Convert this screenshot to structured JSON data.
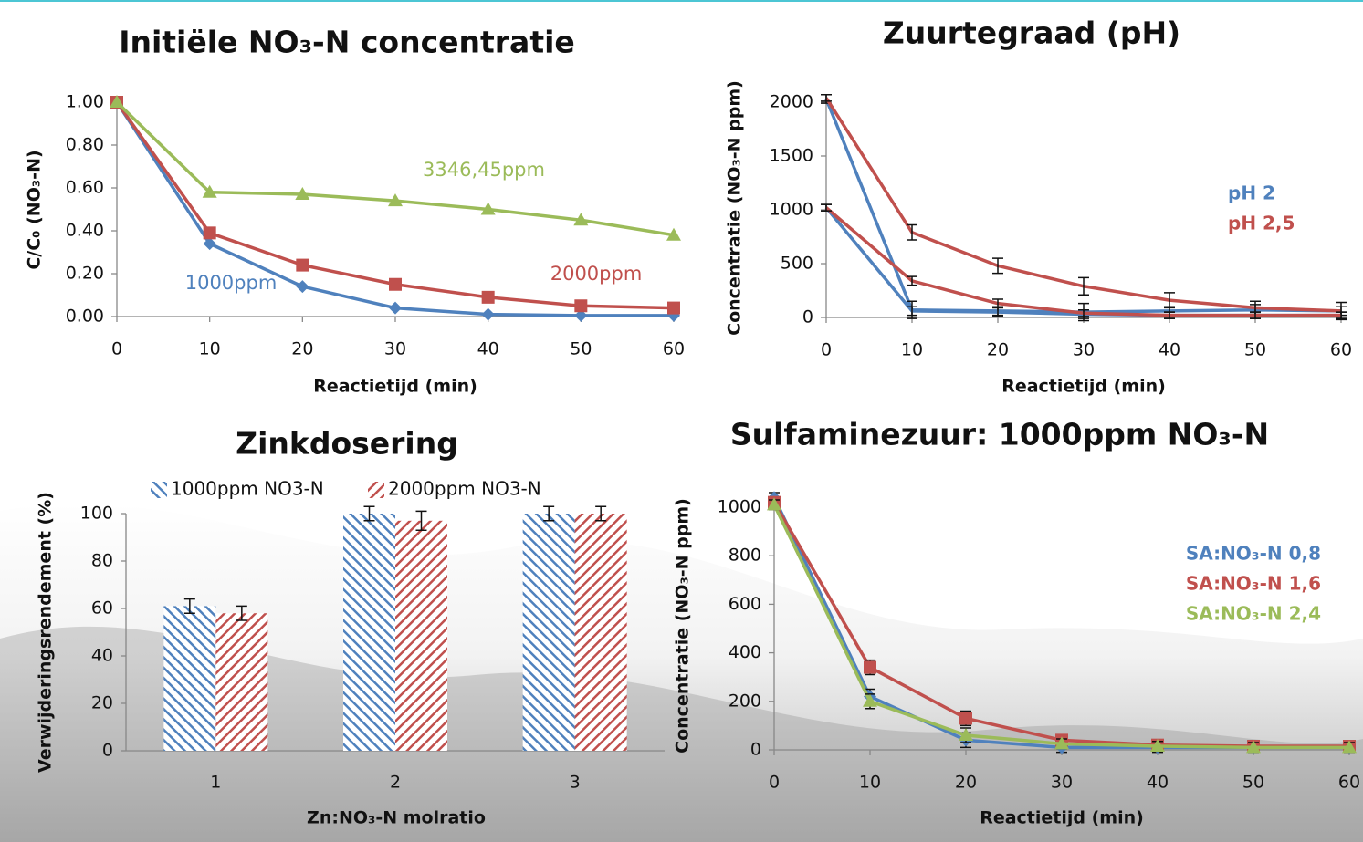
{
  "chart_data": [
    {
      "type": "line",
      "title": "Initiële NO₃-N concentratie",
      "xlabel": "Reactietijd (min)",
      "ylabel": "C/C₀ (NO₃-N)",
      "x": [
        0,
        10,
        20,
        30,
        40,
        50,
        60
      ],
      "xlim": [
        0,
        60
      ],
      "xticks": [
        0,
        10,
        20,
        30,
        40,
        50,
        60
      ],
      "ylim": [
        0,
        1
      ],
      "yticks": [
        {
          "value": 0,
          "label": "0.00"
        },
        {
          "value": 0.2,
          "label": "0.20"
        },
        {
          "value": 0.4,
          "label": "0.40"
        },
        {
          "value": 0.6,
          "label": "0.60"
        },
        {
          "value": 0.8,
          "label": "0.80"
        },
        {
          "value": 1,
          "label": "1.00"
        }
      ],
      "series": [
        {
          "name": "1000ppm",
          "color": "#4f81bd",
          "marker": "diamond",
          "values": [
            1.0,
            0.34,
            0.14,
            0.04,
            0.01,
            0.005,
            0.005
          ]
        },
        {
          "name": "2000ppm",
          "color": "#c0504d",
          "marker": "square",
          "values": [
            1.0,
            0.39,
            0.24,
            0.15,
            0.09,
            0.05,
            0.04
          ]
        },
        {
          "name": "3346,45ppm",
          "color": "#9bbb59",
          "marker": "triangle",
          "values": [
            1.0,
            0.58,
            0.57,
            0.54,
            0.5,
            0.45,
            0.38
          ]
        }
      ]
    },
    {
      "type": "line",
      "title": "Zuurtegraad (pH)",
      "xlabel": "Reactietijd (min)",
      "ylabel": "Concentratie (NO₃-N ppm)",
      "x": [
        0,
        10,
        20,
        30,
        40,
        50,
        60
      ],
      "xlim": [
        0,
        60
      ],
      "xticks": [
        0,
        10,
        20,
        30,
        40,
        50,
        60
      ],
      "ylim": [
        0,
        2000
      ],
      "yticks": [
        0,
        500,
        1000,
        1500,
        2000
      ],
      "legend": [
        {
          "label": "pH 2",
          "color": "#4f81bd"
        },
        {
          "label": "pH 2,5",
          "color": "#c0504d"
        }
      ],
      "series": [
        {
          "color": "#4f81bd",
          "values": [
            2030,
            70,
            60,
            50,
            60,
            70,
            60
          ],
          "errors": [
            40,
            80,
            40,
            80,
            40,
            50,
            40
          ]
        },
        {
          "color": "#4f81bd",
          "values": [
            1020,
            60,
            50,
            30,
            20,
            20,
            20
          ],
          "errors": [
            30,
            40,
            40,
            40,
            30,
            30,
            30
          ]
        },
        {
          "color": "#c0504d",
          "values": [
            2040,
            790,
            480,
            290,
            160,
            90,
            60
          ],
          "errors": [
            30,
            70,
            70,
            80,
            70,
            60,
            80
          ]
        },
        {
          "color": "#c0504d",
          "values": [
            1020,
            340,
            130,
            40,
            20,
            20,
            20
          ],
          "errors": [
            30,
            40,
            40,
            30,
            30,
            30,
            30
          ]
        }
      ]
    },
    {
      "type": "bar",
      "title": "Zinkdosering",
      "xlabel": "Zn:NO₃-N molratio",
      "ylabel": "Verwijderingsrendement (%)",
      "categories": [
        "1",
        "2",
        "3"
      ],
      "ylim": [
        0,
        100
      ],
      "yticks": [
        0,
        20,
        40,
        60,
        80,
        100
      ],
      "series": [
        {
          "name": "1000ppm NO3-N",
          "color": "#4f81bd",
          "values": [
            61,
            100,
            100
          ],
          "errors": [
            3,
            3,
            3
          ]
        },
        {
          "name": "2000ppm NO3-N",
          "color": "#c0504d",
          "values": [
            58,
            97,
            100
          ],
          "errors": [
            3,
            4,
            3
          ]
        }
      ]
    },
    {
      "type": "line",
      "title": "Sulfaminezuur: 1000ppm NO₃-N",
      "xlabel": "Reactietijd (min)",
      "ylabel": "Concentratie (NO₃-N ppm)",
      "x": [
        0,
        10,
        20,
        30,
        40,
        50,
        60
      ],
      "xlim": [
        0,
        60
      ],
      "xticks": [
        0,
        10,
        20,
        30,
        40,
        50,
        60
      ],
      "ylim": [
        0,
        1000
      ],
      "yticks": [
        0,
        200,
        400,
        600,
        800,
        1000
      ],
      "series": [
        {
          "name": "SA:NO₃-N 0,8",
          "color": "#4f81bd",
          "marker": "diamond",
          "values": [
            1040,
            220,
            40,
            10,
            10,
            10,
            10
          ],
          "errors": [
            20,
            30,
            30,
            20,
            20,
            20,
            20
          ]
        },
        {
          "name": "SA:NO₃-N 1,6",
          "color": "#c0504d",
          "marker": "square",
          "values": [
            1020,
            340,
            130,
            40,
            20,
            15,
            15
          ],
          "errors": [
            20,
            30,
            30,
            20,
            20,
            20,
            20
          ]
        },
        {
          "name": "SA:NO₃-N 2,4",
          "color": "#9bbb59",
          "marker": "triangle",
          "values": [
            1010,
            200,
            60,
            25,
            15,
            10,
            10
          ],
          "errors": [
            20,
            30,
            30,
            20,
            20,
            20,
            20
          ]
        }
      ]
    }
  ]
}
